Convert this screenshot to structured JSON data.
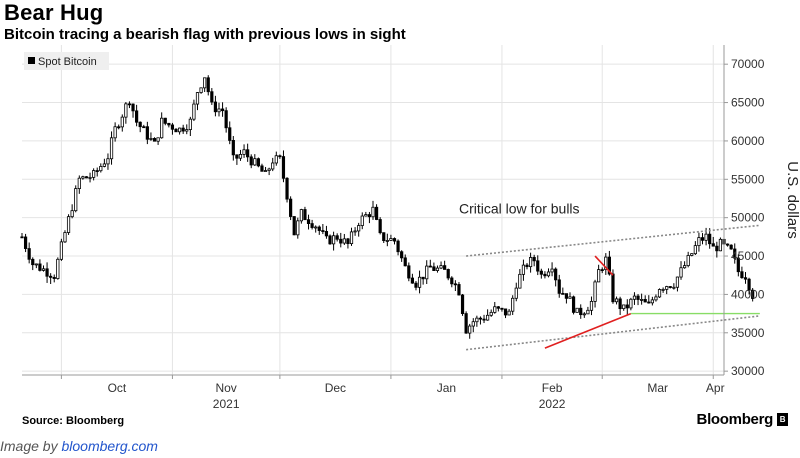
{
  "title": "Bear Hug",
  "subtitle": "Bitcoin tracing a bearish flag with previous lows in sight",
  "source": "Source: Bloomberg",
  "logo": "Bloomberg",
  "logo_mark": "B",
  "credit": {
    "prefix": "Image by ",
    "link": "bloomberg.com"
  },
  "colors": {
    "candles": "#000000",
    "flag_lines": "#888888",
    "red_lines": "#e02020",
    "green_line": "#88dd66",
    "grid": "#e4e4e4"
  },
  "chart_data": {
    "type": "candlestick",
    "legend": [
      "Spot Bitcoin"
    ],
    "legend_position": "top-left",
    "ylabel": "U.S. dollars",
    "y_axis_side": "right",
    "ylim": [
      29500,
      72500
    ],
    "y_ticks": [
      30000,
      35000,
      40000,
      45000,
      50000,
      55000,
      60000,
      65000,
      70000
    ],
    "x_range": [
      "2021-09-20",
      "2022-04-04"
    ],
    "x_tick_labels": [
      {
        "date": "2021-10-01",
        "label": "Oct"
      },
      {
        "date": "2021-11-01",
        "label": "Nov"
      },
      {
        "date": "2021-12-01",
        "label": "Dec"
      },
      {
        "date": "2022-01-01",
        "label": "Jan"
      },
      {
        "date": "2022-02-01",
        "label": "Feb"
      },
      {
        "date": "2022-03-01",
        "label": "Mar"
      },
      {
        "date": "2022-04-01",
        "label": "Apr"
      }
    ],
    "year_labels": [
      {
        "date": "2021-11-01",
        "label": "2021"
      },
      {
        "date": "2022-02-01",
        "label": "2022"
      }
    ],
    "grid": true,
    "price_path": [
      [
        "2021-09-20",
        47500
      ],
      [
        "2021-09-23",
        44000
      ],
      [
        "2021-09-29",
        42500
      ],
      [
        "2021-10-02",
        48000
      ],
      [
        "2021-10-06",
        55000
      ],
      [
        "2021-10-10",
        55500
      ],
      [
        "2021-10-14",
        58000
      ],
      [
        "2021-10-16",
        61500
      ],
      [
        "2021-10-20",
        65500
      ],
      [
        "2021-10-22",
        62500
      ],
      [
        "2021-10-27",
        59500
      ],
      [
        "2021-10-29",
        62500
      ],
      [
        "2021-11-03",
        61500
      ],
      [
        "2021-11-06",
        62500
      ],
      [
        "2021-11-08",
        66500
      ],
      [
        "2021-11-10",
        68500
      ],
      [
        "2021-11-12",
        64500
      ],
      [
        "2021-11-15",
        64000
      ],
      [
        "2021-11-18",
        57500
      ],
      [
        "2021-11-21",
        58500
      ],
      [
        "2021-11-24",
        57000
      ],
      [
        "2021-11-27",
        55500
      ],
      [
        "2021-11-29",
        57500
      ],
      [
        "2021-12-01",
        57500
      ],
      [
        "2021-12-03",
        53000
      ],
      [
        "2021-12-05",
        48000
      ],
      [
        "2021-12-07",
        50500
      ],
      [
        "2021-12-11",
        49000
      ],
      [
        "2021-12-14",
        47000
      ],
      [
        "2021-12-17",
        47500
      ],
      [
        "2021-12-20",
        46500
      ],
      [
        "2021-12-23",
        49500
      ],
      [
        "2021-12-27",
        51000
      ],
      [
        "2021-12-29",
        47500
      ],
      [
        "2022-01-02",
        47000
      ],
      [
        "2022-01-05",
        43500
      ],
      [
        "2022-01-08",
        41500
      ],
      [
        "2022-01-12",
        43500
      ],
      [
        "2022-01-16",
        43000
      ],
      [
        "2022-01-18",
        42000
      ],
      [
        "2022-01-20",
        40500
      ],
      [
        "2022-01-22",
        35500
      ],
      [
        "2022-01-24",
        36500
      ],
      [
        "2022-01-27",
        37000
      ],
      [
        "2022-01-30",
        38000
      ],
      [
        "2022-02-03",
        37500
      ],
      [
        "2022-02-05",
        41500
      ],
      [
        "2022-02-08",
        44000
      ],
      [
        "2022-02-10",
        44500
      ],
      [
        "2022-02-12",
        42500
      ],
      [
        "2022-02-15",
        44000
      ],
      [
        "2022-02-17",
        40500
      ],
      [
        "2022-02-19",
        40000
      ],
      [
        "2022-02-22",
        37500
      ],
      [
        "2022-02-24",
        38000
      ],
      [
        "2022-02-26",
        39000
      ],
      [
        "2022-02-28",
        43000
      ],
      [
        "2022-03-02",
        44500
      ],
      [
        "2022-03-04",
        39500
      ],
      [
        "2022-03-07",
        38000
      ],
      [
        "2022-03-10",
        39500
      ],
      [
        "2022-03-14",
        38500
      ],
      [
        "2022-03-17",
        41000
      ],
      [
        "2022-03-21",
        41500
      ],
      [
        "2022-03-25",
        44500
      ],
      [
        "2022-03-28",
        47000
      ],
      [
        "2022-03-30",
        47500
      ],
      [
        "2022-04-01",
        46000
      ],
      [
        "2022-04-03",
        46500
      ],
      [
        "2022-04-06",
        45500
      ],
      [
        "2022-04-08",
        43000
      ],
      [
        "2022-04-10",
        42500
      ],
      [
        "2022-04-12",
        40000
      ]
    ],
    "annotations": [
      {
        "type": "text",
        "text": "Critical low for bulls",
        "date": "2022-01-20",
        "value": 50000
      },
      {
        "type": "line",
        "color": "gray-dotted",
        "points": [
          [
            "2022-01-22",
            45000
          ],
          [
            "2022-04-14",
            49000
          ]
        ]
      },
      {
        "type": "line",
        "color": "gray-dotted",
        "points": [
          [
            "2022-01-22",
            32800
          ],
          [
            "2022-04-14",
            37200
          ]
        ]
      },
      {
        "type": "line",
        "color": "red",
        "points": [
          [
            "2022-02-13",
            33000
          ],
          [
            "2022-03-09",
            37500
          ]
        ]
      },
      {
        "type": "line",
        "color": "red",
        "points": [
          [
            "2022-02-27",
            45000
          ],
          [
            "2022-03-04",
            42500
          ]
        ]
      },
      {
        "type": "line",
        "color": "green",
        "points": [
          [
            "2022-03-09",
            37500
          ],
          [
            "2022-04-14",
            37500
          ]
        ]
      }
    ]
  }
}
